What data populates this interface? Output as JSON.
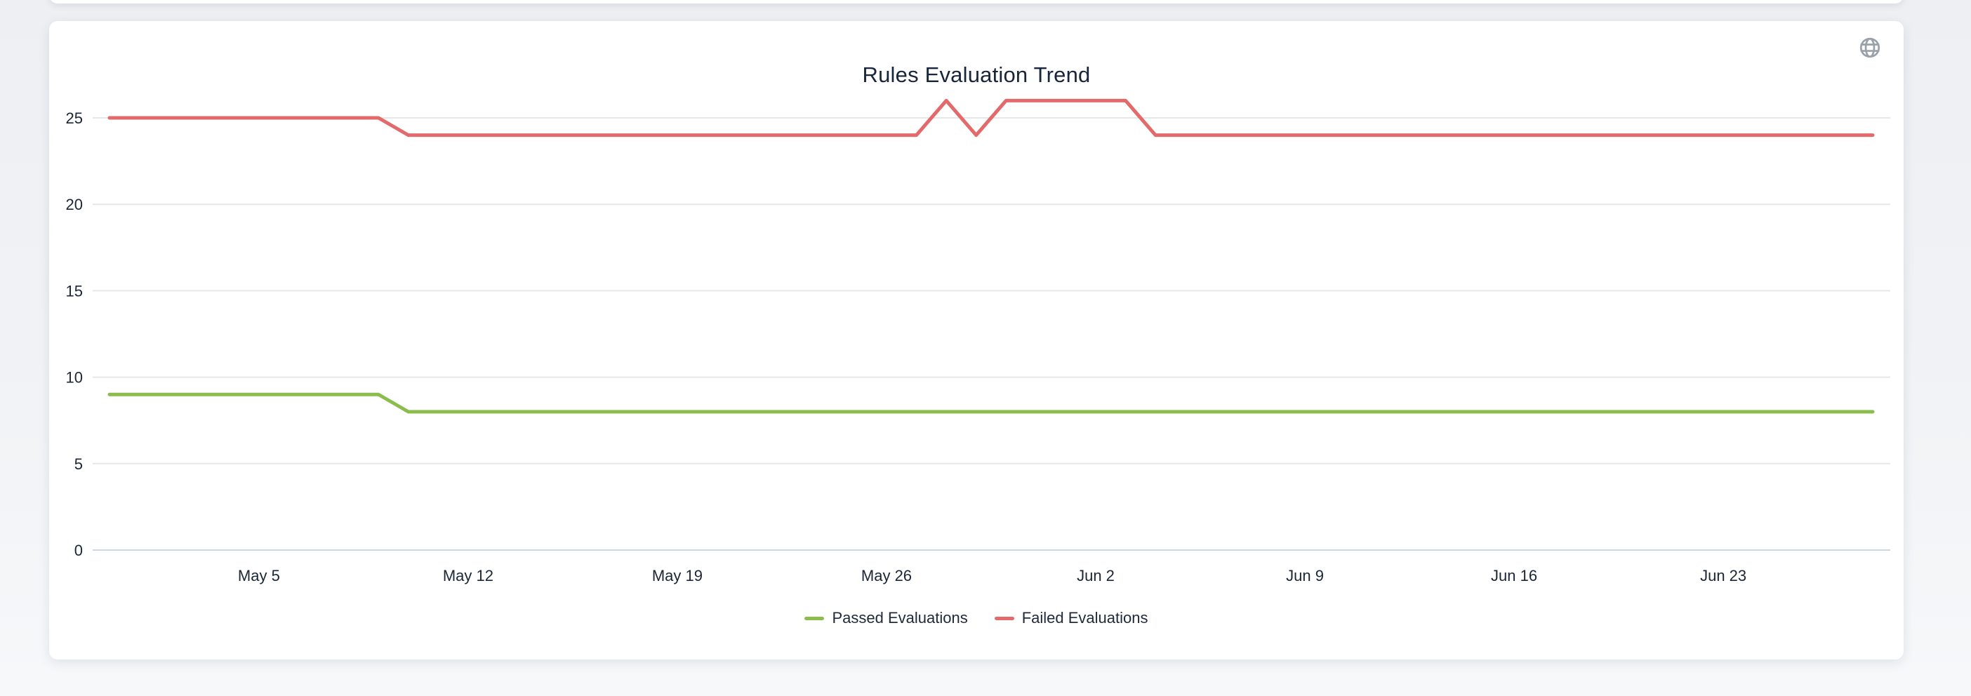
{
  "page": {
    "background_top": "#edeff3",
    "background_bottom": "#f6f8fa"
  },
  "card": {
    "background": "#ffffff"
  },
  "header": {
    "title": "Rules Evaluation Trend",
    "icon": "globe-icon",
    "icon_color": "#9aa1ab"
  },
  "axes": {
    "grid_color": "#e7e7e7",
    "axis_line_color": "#ccd6eb",
    "label_color": "#1b2636"
  },
  "legend": {
    "items": [
      {
        "label": "Passed Evaluations",
        "color": "#8bbd4d"
      },
      {
        "label": "Failed Evaluations",
        "color": "#e3696b"
      }
    ]
  },
  "chart_data": {
    "type": "line",
    "title": "Rules Evaluation Trend",
    "xlabel": "",
    "ylabel": "",
    "grid": true,
    "legend_position": "bottom",
    "ylim": [
      0,
      26
    ],
    "y_ticks": [
      0,
      5,
      10,
      15,
      20,
      25
    ],
    "x_tick_labels": [
      "May 5",
      "May 12",
      "May 19",
      "May 26",
      "Jun 2",
      "Jun 9",
      "Jun 16",
      "Jun 23"
    ],
    "x_tick_day_indices": [
      5,
      12,
      19,
      26,
      33,
      40,
      47,
      54
    ],
    "x": [
      "Apr 30",
      "May 1",
      "May 2",
      "May 3",
      "May 4",
      "May 5",
      "May 6",
      "May 7",
      "May 8",
      "May 9",
      "May 10",
      "May 11",
      "May 12",
      "May 13",
      "May 14",
      "May 15",
      "May 16",
      "May 17",
      "May 18",
      "May 19",
      "May 20",
      "May 21",
      "May 22",
      "May 23",
      "May 24",
      "May 25",
      "May 26",
      "May 27",
      "May 28",
      "May 29",
      "May 30",
      "May 31",
      "Jun 1",
      "Jun 2",
      "Jun 3",
      "Jun 4",
      "Jun 5",
      "Jun 6",
      "Jun 7",
      "Jun 8",
      "Jun 9",
      "Jun 10",
      "Jun 11",
      "Jun 12",
      "Jun 13",
      "Jun 14",
      "Jun 15",
      "Jun 16",
      "Jun 17",
      "Jun 18",
      "Jun 19",
      "Jun 20",
      "Jun 21",
      "Jun 22",
      "Jun 23",
      "Jun 24",
      "Jun 25",
      "Jun 26",
      "Jun 27",
      "Jun 28"
    ],
    "series": [
      {
        "name": "Passed Evaluations",
        "color": "#8bbd4d",
        "values": [
          9,
          9,
          9,
          9,
          9,
          9,
          9,
          9,
          9,
          9,
          8,
          8,
          8,
          8,
          8,
          8,
          8,
          8,
          8,
          8,
          8,
          8,
          8,
          8,
          8,
          8,
          8,
          8,
          8,
          8,
          8,
          8,
          8,
          8,
          8,
          8,
          8,
          8,
          8,
          8,
          8,
          8,
          8,
          8,
          8,
          8,
          8,
          8,
          8,
          8,
          8,
          8,
          8,
          8,
          8,
          8,
          8,
          8,
          8,
          8
        ]
      },
      {
        "name": "Failed Evaluations",
        "color": "#e3696b",
        "values": [
          25,
          25,
          25,
          25,
          25,
          25,
          25,
          25,
          25,
          25,
          24,
          24,
          24,
          24,
          24,
          24,
          24,
          24,
          24,
          24,
          24,
          24,
          24,
          24,
          24,
          24,
          24,
          24,
          26,
          24,
          26,
          26,
          26,
          26,
          26,
          24,
          24,
          24,
          24,
          24,
          24,
          24,
          24,
          24,
          24,
          24,
          24,
          24,
          24,
          24,
          24,
          24,
          24,
          24,
          24,
          24,
          24,
          24,
          24,
          24
        ]
      }
    ]
  }
}
